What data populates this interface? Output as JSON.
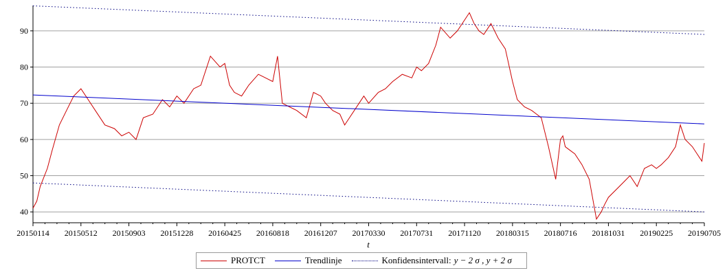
{
  "chart_data": {
    "type": "line",
    "title": "",
    "xlabel": "t",
    "ylabel": "",
    "ylim": [
      37,
      97
    ],
    "yticks": [
      40,
      50,
      60,
      70,
      80,
      90
    ],
    "grid": true,
    "xtick_labels": [
      "20150114",
      "20150512",
      "20150903",
      "20151228",
      "20160425",
      "20160818",
      "20161207",
      "20170330",
      "20170731",
      "20171120",
      "20180315",
      "20180716",
      "20181031",
      "20190225",
      "20190705"
    ],
    "series": [
      {
        "name": "PROTCT",
        "color": "#cc0000",
        "style": "solid",
        "x": [
          0,
          0.08,
          0.15,
          0.3,
          0.4,
          0.55,
          0.7,
          0.85,
          1.0,
          1.15,
          1.3,
          1.5,
          1.7,
          1.85,
          2.0,
          2.15,
          2.3,
          2.5,
          2.7,
          2.85,
          3.0,
          3.15,
          3.35,
          3.5,
          3.7,
          3.9,
          4.0,
          4.1,
          4.2,
          4.35,
          4.5,
          4.7,
          4.85,
          5.0,
          5.1,
          5.2,
          5.35,
          5.5,
          5.7,
          5.85,
          6.0,
          6.1,
          6.25,
          6.4,
          6.5,
          6.7,
          6.9,
          7.0,
          7.2,
          7.35,
          7.5,
          7.7,
          7.9,
          8.0,
          8.1,
          8.25,
          8.4,
          8.5,
          8.7,
          8.85,
          9.0,
          9.1,
          9.2,
          9.3,
          9.4,
          9.55,
          9.7,
          9.85,
          10.0,
          10.1,
          10.25,
          10.4,
          10.5,
          10.6,
          10.75,
          10.9,
          11.0,
          11.05,
          11.1,
          11.2,
          11.3,
          11.45,
          11.6,
          11.75,
          11.85,
          11.92,
          12.0,
          12.15,
          12.3,
          12.45,
          12.6,
          12.75,
          12.9,
          13.0,
          13.1,
          13.25,
          13.4,
          13.5,
          13.6,
          13.75,
          13.85,
          13.95,
          14.0
        ],
        "values": [
          41,
          43,
          47,
          52,
          57,
          64,
          68,
          72,
          74,
          71,
          68,
          64,
          63,
          61,
          62,
          60,
          66,
          67,
          71,
          69,
          72,
          70,
          74,
          75,
          83,
          80,
          81,
          75,
          73,
          72,
          75,
          78,
          77,
          76,
          83,
          70,
          69,
          68,
          66,
          73,
          72,
          70,
          68,
          67,
          64,
          68,
          72,
          70,
          73,
          74,
          76,
          78,
          77,
          80,
          79,
          81,
          86,
          91,
          88,
          90,
          93,
          95,
          92,
          90,
          89,
          92,
          88,
          85,
          76,
          71,
          69,
          68,
          67,
          66,
          58,
          49,
          60,
          61,
          58,
          57,
          56,
          53,
          49,
          38,
          40,
          42,
          44,
          46,
          48,
          50,
          47,
          52,
          53,
          52,
          53,
          55,
          58,
          64,
          60,
          58,
          56,
          54,
          59
        ]
      },
      {
        "name": "Trendlinje",
        "color": "#0000cc",
        "style": "solid",
        "x": [
          0,
          14
        ],
        "values": [
          72.3,
          64.3
        ]
      },
      {
        "name": "Konfidensintervall:",
        "color": "#000080",
        "style": "dotted",
        "x": [
          0,
          14
        ],
        "values": [
          96.9,
          89.0
        ],
        "lower_values": [
          48.0,
          40.0
        ]
      }
    ],
    "legend": {
      "position": "bottom",
      "items": [
        "PROTCT",
        "Trendlinje",
        "Konfidensintervall:"
      ],
      "formula": "y − 2 σ , y + 2 σ"
    }
  }
}
